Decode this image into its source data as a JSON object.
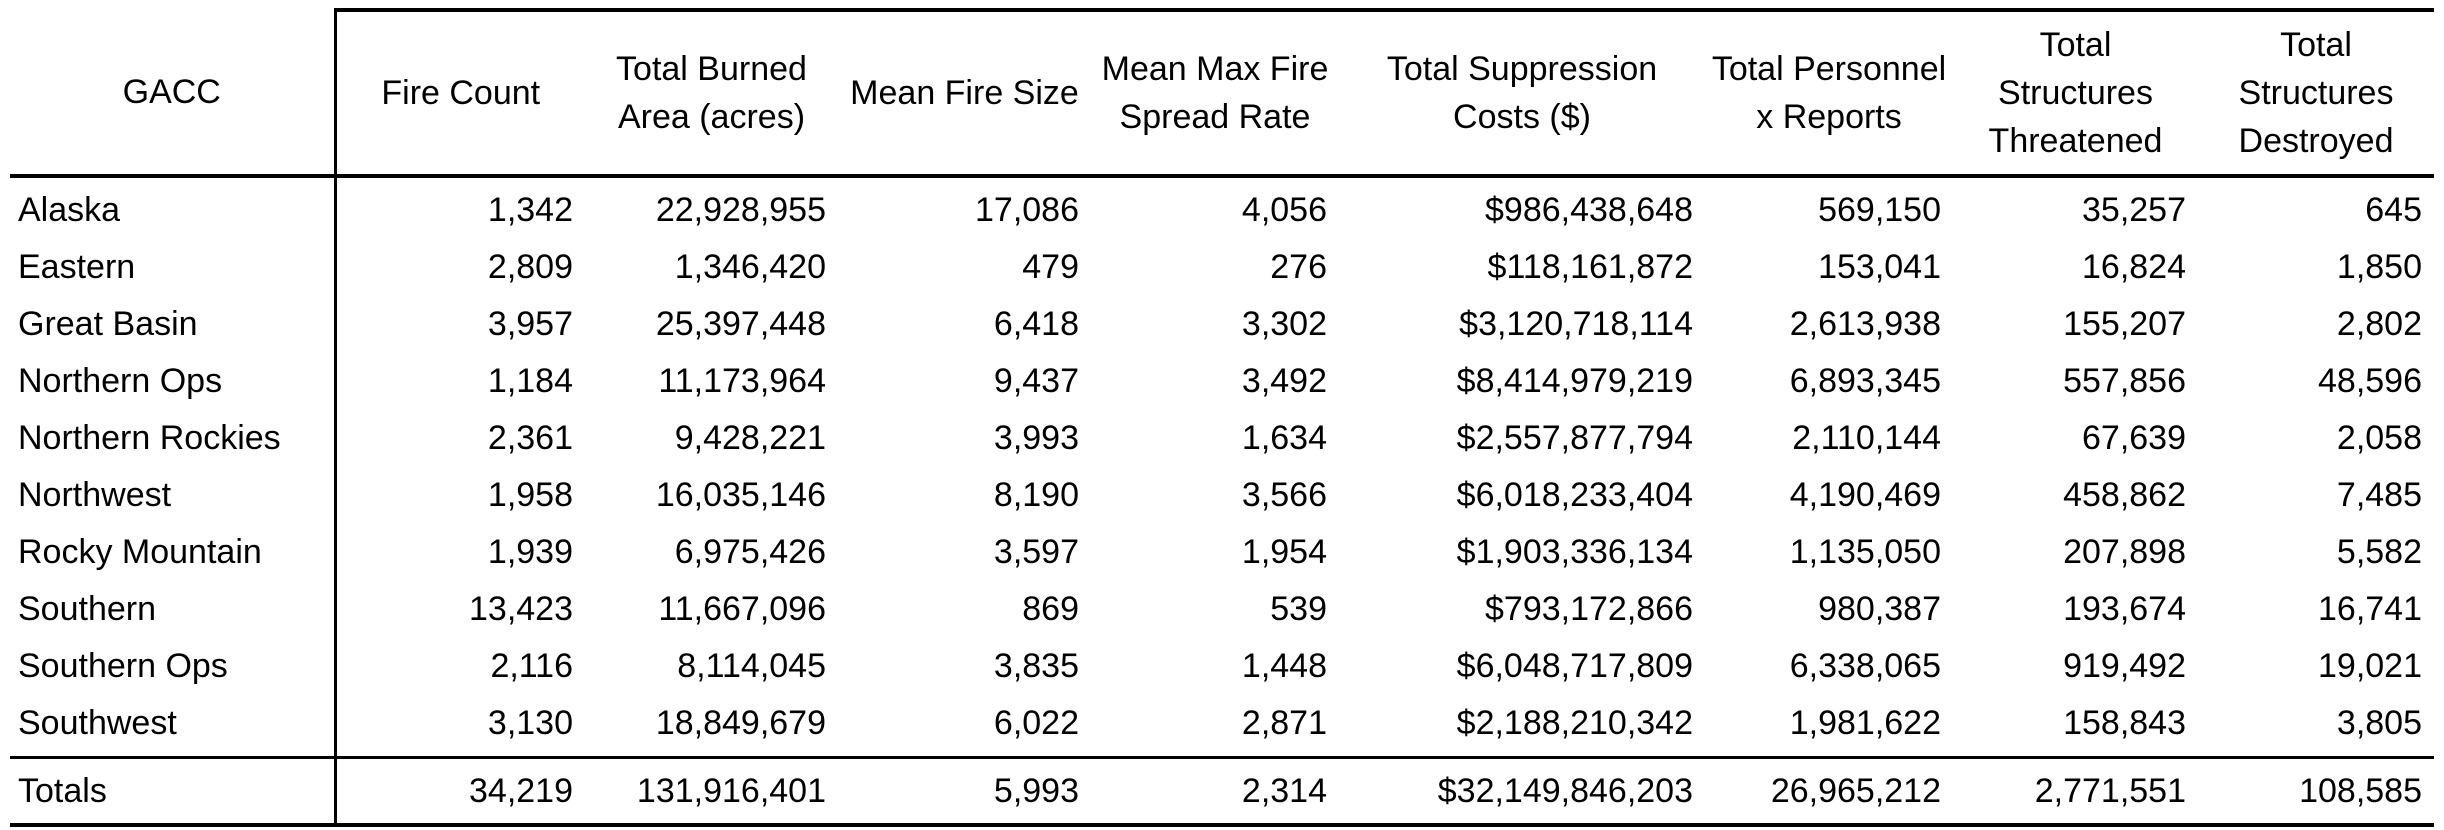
{
  "table": {
    "headers": [
      "GACC",
      "Fire Count",
      "Total Burned Area (acres)",
      "Mean Fire Size",
      "Mean Max Fire Spread Rate",
      "Total Suppression Costs ($)",
      "Total Personnel x Reports",
      "Total Structures Threatened",
      "Total Structures Destroyed"
    ],
    "rows": [
      [
        "Alaska",
        "1,342",
        "22,928,955",
        "17,086",
        "4,056",
        "$986,438,648",
        "569,150",
        "35,257",
        "645"
      ],
      [
        "Eastern",
        "2,809",
        "1,346,420",
        "479",
        "276",
        "$118,161,872",
        "153,041",
        "16,824",
        "1,850"
      ],
      [
        "Great Basin",
        "3,957",
        "25,397,448",
        "6,418",
        "3,302",
        "$3,120,718,114",
        "2,613,938",
        "155,207",
        "2,802"
      ],
      [
        "Northern Ops",
        "1,184",
        "11,173,964",
        "9,437",
        "3,492",
        "$8,414,979,219",
        "6,893,345",
        "557,856",
        "48,596"
      ],
      [
        "Northern Rockies",
        "2,361",
        "9,428,221",
        "3,993",
        "1,634",
        "$2,557,877,794",
        "2,110,144",
        "67,639",
        "2,058"
      ],
      [
        "Northwest",
        "1,958",
        "16,035,146",
        "8,190",
        "3,566",
        "$6,018,233,404",
        "4,190,469",
        "458,862",
        "7,485"
      ],
      [
        "Rocky Mountain",
        "1,939",
        "6,975,426",
        "3,597",
        "1,954",
        "$1,903,336,134",
        "1,135,050",
        "207,898",
        "5,582"
      ],
      [
        "Southern",
        "13,423",
        "11,667,096",
        "869",
        "539",
        "$793,172,866",
        "980,387",
        "193,674",
        "16,741"
      ],
      [
        "Southern Ops",
        "2,116",
        "8,114,045",
        "3,835",
        "1,448",
        "$6,048,717,809",
        "6,338,065",
        "919,492",
        "19,021"
      ],
      [
        "Southwest",
        "3,130",
        "18,849,679",
        "6,022",
        "2,871",
        "$2,188,210,342",
        "1,981,622",
        "158,843",
        "3,805"
      ]
    ],
    "totals": [
      "Totals",
      "34,219",
      "131,916,401",
      "5,993",
      "2,314",
      "$32,149,846,203",
      "26,965,212",
      "2,771,551",
      "108,585"
    ]
  }
}
